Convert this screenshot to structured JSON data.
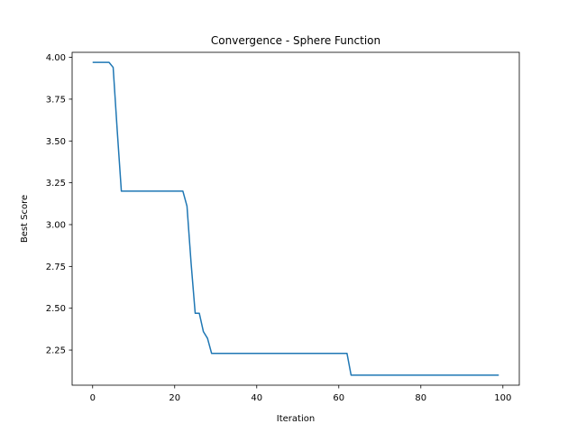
{
  "chart_data": {
    "type": "line",
    "title": "Convergence - Sphere Function",
    "xlabel": "Iteration",
    "ylabel": "Best Score",
    "xlim": [
      -5,
      104
    ],
    "ylim": [
      2.04,
      4.03
    ],
    "xticks": [
      0,
      20,
      40,
      60,
      80,
      100
    ],
    "xtick_labels": [
      "0",
      "20",
      "40",
      "60",
      "80",
      "100"
    ],
    "yticks": [
      2.25,
      2.5,
      2.75,
      3.0,
      3.25,
      3.5,
      3.75,
      4.0
    ],
    "ytick_labels": [
      "2.25",
      "2.50",
      "2.75",
      "3.00",
      "3.25",
      "3.50",
      "3.75",
      "4.00"
    ],
    "grid": false,
    "legend": "none",
    "series": [
      {
        "color": "#1f77b4",
        "x": [
          0,
          1,
          2,
          3,
          4,
          5,
          6,
          7,
          8,
          9,
          10,
          11,
          12,
          13,
          14,
          15,
          16,
          17,
          18,
          19,
          20,
          21,
          22,
          23,
          24,
          25,
          26,
          27,
          28,
          29,
          30,
          31,
          32,
          33,
          34,
          35,
          36,
          37,
          38,
          39,
          40,
          41,
          42,
          43,
          44,
          45,
          46,
          47,
          48,
          49,
          50,
          51,
          52,
          53,
          54,
          55,
          56,
          57,
          58,
          59,
          60,
          61,
          62,
          63,
          64,
          65,
          66,
          67,
          68,
          69,
          70,
          71,
          72,
          73,
          74,
          75,
          76,
          77,
          78,
          79,
          80,
          81,
          82,
          83,
          84,
          85,
          86,
          87,
          88,
          89,
          90,
          91,
          92,
          93,
          94,
          95,
          96,
          97,
          98,
          99
        ],
        "values": [
          3.97,
          3.97,
          3.97,
          3.97,
          3.97,
          3.94,
          3.56,
          3.2,
          3.2,
          3.2,
          3.2,
          3.2,
          3.2,
          3.2,
          3.2,
          3.2,
          3.2,
          3.2,
          3.2,
          3.2,
          3.2,
          3.2,
          3.2,
          3.11,
          2.77,
          2.47,
          2.47,
          2.36,
          2.32,
          2.23,
          2.23,
          2.23,
          2.23,
          2.23,
          2.23,
          2.23,
          2.23,
          2.23,
          2.23,
          2.23,
          2.23,
          2.23,
          2.23,
          2.23,
          2.23,
          2.23,
          2.23,
          2.23,
          2.23,
          2.23,
          2.23,
          2.23,
          2.23,
          2.23,
          2.23,
          2.23,
          2.23,
          2.23,
          2.23,
          2.23,
          2.23,
          2.23,
          2.23,
          2.1,
          2.1,
          2.1,
          2.1,
          2.1,
          2.1,
          2.1,
          2.1,
          2.1,
          2.1,
          2.1,
          2.1,
          2.1,
          2.1,
          2.1,
          2.1,
          2.1,
          2.1,
          2.1,
          2.1,
          2.1,
          2.1,
          2.1,
          2.1,
          2.1,
          2.1,
          2.1,
          2.1,
          2.1,
          2.1,
          2.1,
          2.1,
          2.1,
          2.1,
          2.1,
          2.1,
          2.1
        ]
      }
    ]
  }
}
